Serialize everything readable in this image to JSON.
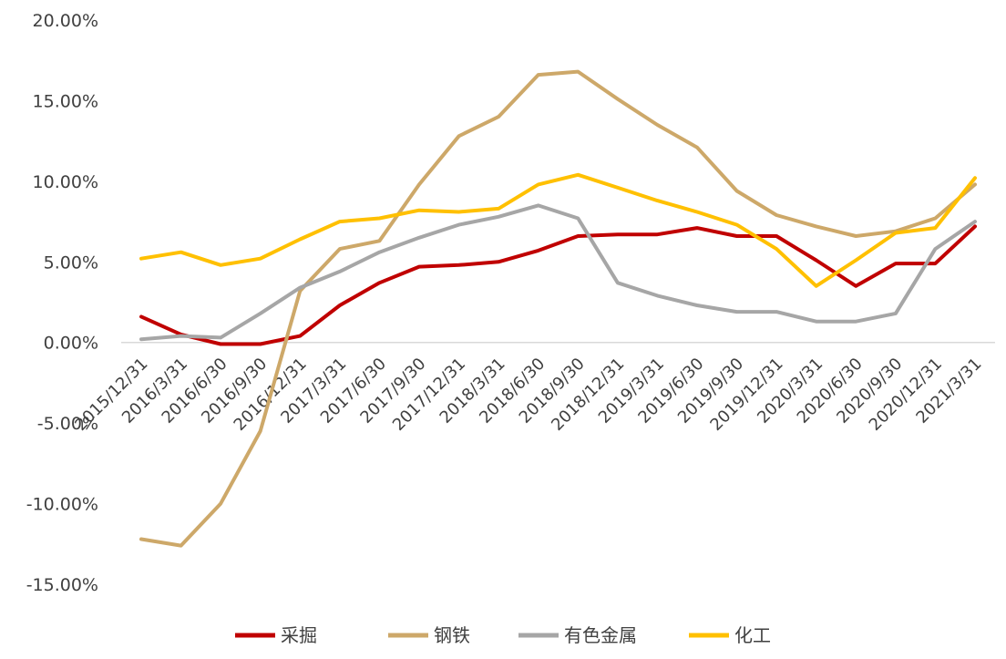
{
  "chart_data": {
    "type": "line",
    "title": "",
    "xlabel": "",
    "ylabel": "",
    "ylim": [
      -15,
      20
    ],
    "yticks": [
      "20.00%",
      "15.00%",
      "10.00%",
      "5.00%",
      "0.00%",
      "-5.00%",
      "-10.00%",
      "-15.00%"
    ],
    "ytick_values": [
      20,
      15,
      10,
      5,
      0,
      -5,
      -10,
      -15
    ],
    "grid": false,
    "legend_position": "bottom",
    "categories": [
      "2015/12/31",
      "2016/3/31",
      "2016/6/30",
      "2016/9/30",
      "2016/12/31",
      "2017/3/31",
      "2017/6/30",
      "2017/9/30",
      "2017/12/31",
      "2018/3/31",
      "2018/6/30",
      "2018/9/30",
      "2018/12/31",
      "2019/3/31",
      "2019/6/30",
      "2019/9/30",
      "2019/12/31",
      "2020/3/31",
      "2020/6/30",
      "2020/9/30",
      "2020/12/31",
      "2021/3/31"
    ],
    "series": [
      {
        "name": "采掘",
        "color": "#C00000",
        "values": [
          1.6,
          0.5,
          -0.1,
          -0.1,
          0.4,
          2.3,
          3.7,
          4.7,
          4.8,
          5.0,
          5.7,
          6.6,
          6.7,
          6.7,
          7.1,
          6.6,
          6.6,
          5.1,
          3.5,
          4.9,
          4.9,
          7.2
        ]
      },
      {
        "name": "钢铁",
        "color": "#CDA869",
        "values": [
          -12.2,
          -12.6,
          -10.0,
          -5.5,
          3.2,
          5.8,
          6.3,
          9.8,
          12.8,
          14.0,
          16.6,
          16.8,
          15.1,
          13.5,
          12.1,
          9.4,
          7.9,
          7.2,
          6.6,
          6.9,
          7.7,
          9.8
        ]
      },
      {
        "name": "有色金属",
        "color": "#A6A6A6",
        "values": [
          0.2,
          0.4,
          0.3,
          1.8,
          3.4,
          4.4,
          5.6,
          6.5,
          7.3,
          7.8,
          8.5,
          7.7,
          3.7,
          2.9,
          2.3,
          1.9,
          1.9,
          1.3,
          1.3,
          1.8,
          5.8,
          7.5
        ]
      },
      {
        "name": "化工",
        "color": "#FFC000",
        "values": [
          5.2,
          5.6,
          4.8,
          5.2,
          6.4,
          7.5,
          7.7,
          8.2,
          8.1,
          8.3,
          9.8,
          10.4,
          9.6,
          8.8,
          8.1,
          7.3,
          5.8,
          3.5,
          5.1,
          6.8,
          7.1,
          10.2
        ]
      }
    ]
  }
}
